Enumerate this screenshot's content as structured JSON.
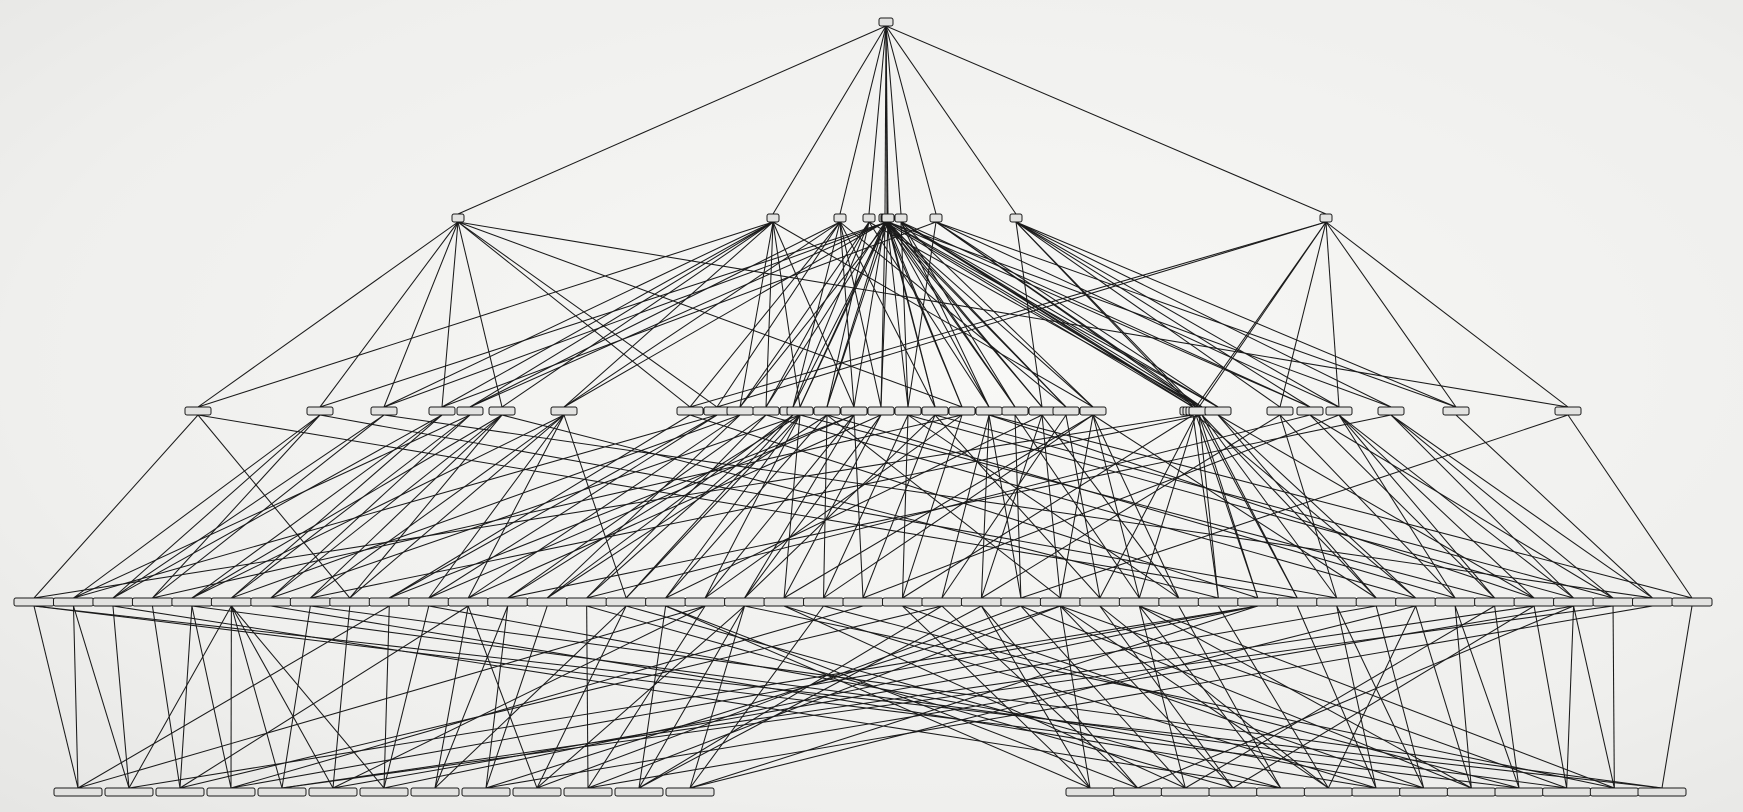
{
  "diagram": {
    "type": "layered-hierarchy-graph",
    "node_label_style": "illegible-small-rounded-boxes",
    "colors": {
      "background": "#f3f3f1",
      "edge": "#1a1a1a",
      "node_fill": "#e2e2e0",
      "node_stroke": "#1a1a1a"
    },
    "levels": [
      {
        "name": "root",
        "count": 1
      },
      {
        "name": "level-1",
        "count": 11
      },
      {
        "name": "level-2",
        "count": 35
      },
      {
        "name": "level-3",
        "count": 43
      },
      {
        "name": "leaves",
        "count": 26
      }
    ]
  }
}
